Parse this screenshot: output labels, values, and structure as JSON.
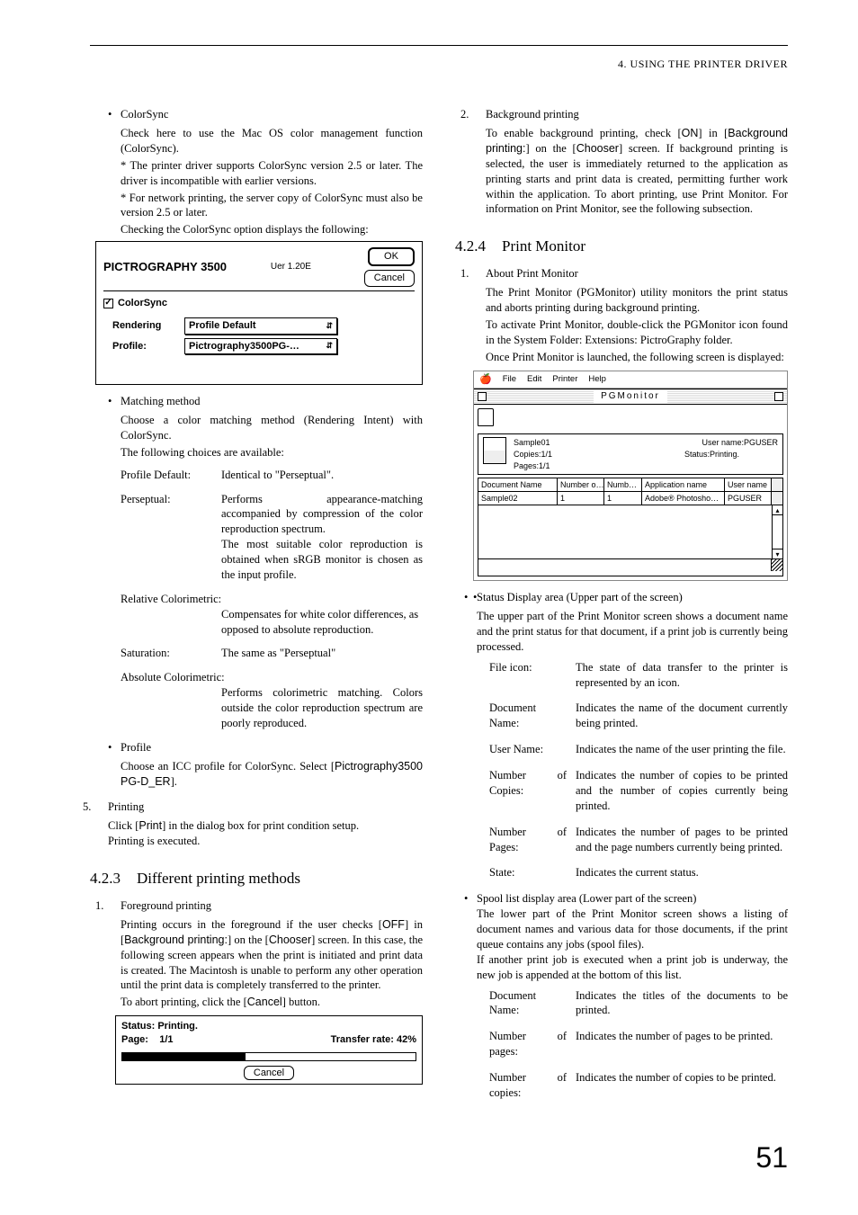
{
  "header": {
    "running": "4. USING THE PRINTER DRIVER"
  },
  "left": {
    "colorsync_title": "ColorSync",
    "colorsync_p1": "Check here to use the Mac OS color management function (ColorSync).",
    "colorsync_p2": "* The printer driver supports ColorSync version 2.5 or later. The driver is incompatible with earlier versions.",
    "colorsync_p3": "* For network printing, the server copy of ColorSync must also be version 2.5 or later.",
    "colorsync_p4": "Checking the ColorSync option displays the following:",
    "dialog": {
      "title": "PICTROGRAPHY 3500",
      "ver": "Uer 1.20E",
      "ok": "OK",
      "cancel": "Cancel",
      "checkbox": "ColorSync",
      "rendering_label": "Rendering",
      "rendering_value": "Profile Default",
      "profile_label": "Profile:",
      "profile_value": "Pictrography3500PG-…"
    },
    "matching_title": "Matching method",
    "matching_p1": "Choose a color matching method (Rendering Intent) with ColorSync.",
    "matching_p2": "The following choices are available:",
    "defs": {
      "t1": "Profile Default:",
      "d1": "Identical to \"Perseptual\".",
      "t2": "Perseptual:",
      "d2": "Performs appearance-matching accompanied by compression of the color reproduction spectrum.\nThe most suitable color reproduction is obtained when sRGB monitor is chosen as the input profile.",
      "t3": "Relative Colorimetric:",
      "d3": "Compensates for white color differences, as opposed to absolute reproduction.",
      "t4": "Saturation:",
      "d4": "The same as \"Perseptual\"",
      "t5": "Absolute Colorimetric:",
      "d5": "Performs colorimetric matching. Colors outside the color reproduction spectrum are poorly reproduced."
    },
    "profile_title": "Profile",
    "profile_p1a": "Choose an ICC profile for ColorSync. Select [",
    "profile_p1b": "Pictrography3500 PG-D_ER",
    "profile_p1c": "].",
    "printing_num": "5.",
    "printing_title": "Printing",
    "printing_p1a": "Click [",
    "printing_p1b": "Print",
    "printing_p1c": "] in the dialog box for print condition setup.",
    "printing_p2": "Printing is executed.",
    "sec423_num": "4.2.3",
    "sec423_title": "Different printing methods",
    "fg_num": "1.",
    "fg_title": "Foreground printing",
    "fg_p1a": "Printing occurs in the foreground if the user checks [",
    "fg_p1b": "OFF",
    "fg_p1c": "] in [",
    "fg_p1d": "Background printing:",
    "fg_p1e": "] on the [",
    "fg_p1f": "Chooser",
    "fg_p1g": "] screen. In this case, the following screen appears when the print is initiated and print data is created. The Macintosh is unable to perform any other operation until the print data is completely transferred to the printer.",
    "fg_p2a": "To abort printing, click the [",
    "fg_p2b": "Cancel",
    "fg_p2c": "] button.",
    "status": {
      "status_label": "Status:",
      "status_value": "Printing.",
      "page_label": "Page:",
      "page_value": "1/1",
      "rate_label": "Transfer rate:",
      "rate_value": "42%",
      "progress_pct": 42,
      "cancel": "Cancel"
    }
  },
  "right": {
    "bg_num": "2.",
    "bg_title": "Background printing",
    "bg_p1a": "To enable background printing, check [",
    "bg_p1b": "ON",
    "bg_p1c": "] in [",
    "bg_p1d": "Background printing:",
    "bg_p1e": "] on the [",
    "bg_p1f": "Chooser",
    "bg_p1g": "] screen. If background printing is selected, the user is immediately returned to the application as printing starts and print data is created, permitting further work within the application. To abort printing, use Print Monitor. For information on Print Monitor, see the following subsection.",
    "sec424_num": "4.2.4",
    "sec424_title": "Print Monitor",
    "pm_num": "1.",
    "pm_title": "About Print Monitor",
    "pm_p1": "The Print Monitor (PGMonitor) utility monitors the print status and aborts printing during background printing.",
    "pm_p2": "To activate Print Monitor, double-click the PGMonitor icon found in the System Folder: Extensions: PictroGraphy folder.",
    "pm_p3": "Once Print Monitor is launched, the following screen is displayed:",
    "pgmon": {
      "menus": {
        "m1": "File",
        "m2": "Edit",
        "m3": "Printer",
        "m4": "Help"
      },
      "title": "PGMonitor",
      "info": {
        "doc": "Sample01",
        "user_label": "User name:",
        "user": "PGUSER",
        "copies": "Copies:1/1",
        "status_label": "Status:",
        "status": "Printing.",
        "pages": "Pages:1/1"
      },
      "th": {
        "doc": "Document Name",
        "nc": "Number o…",
        "np": "Numb…",
        "app": "Application name",
        "user": "User name"
      },
      "row": {
        "doc": "Sample02",
        "nc": "1",
        "np": "1",
        "app": "Adobe® Photosho…",
        "user": "PGUSER"
      }
    },
    "sd_title": "Status Display area (Upper part of the screen)",
    "sd_p1": "The upper part of the Print Monitor screen shows a document name and the print status for that document, if a print job is currently being processed.",
    "sd_defs": {
      "t1": "File icon:",
      "d1": "The state of data transfer to the printer is represented by an icon.",
      "t2": "Document Name:",
      "d2": "Indicates the name of the document currently being printed.",
      "t3": "User Name:",
      "d3": "Indicates the name of the user printing the file.",
      "t4": "Number of Copies:",
      "d4": "Indicates the number of copies to be printed and the number of copies currently being printed.",
      "t5": "Number of Pages:",
      "d5": "Indicates the number of pages to be printed and the page numbers currently being printed.",
      "t6": "State:",
      "d6": "Indicates the current status."
    },
    "sl_title": "Spool list display area (Lower part of the screen)",
    "sl_p1": "The lower part of the Print Monitor screen shows a listing of document names and various data for those documents, if the print queue contains any jobs (spool files).",
    "sl_p2": "If another print job is executed when a print job is underway, the new job is appended at the bottom of this list.",
    "sl_defs": {
      "t1": "Document Name:",
      "d1": "Indicates the titles of the documents to be printed.",
      "t2": "Number of pages:",
      "d2": "Indicates the number of pages to be printed.",
      "t3": "Number of copies:",
      "d3": "Indicates the number of copies to be printed."
    }
  },
  "pagenum": "51"
}
